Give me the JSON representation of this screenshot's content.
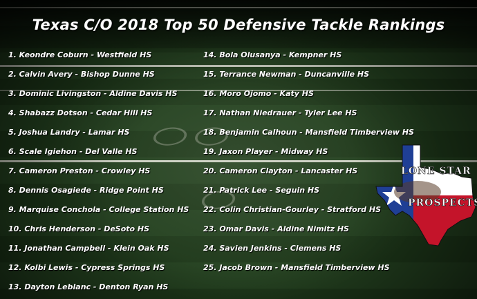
{
  "title": "Texas C/O 2018 Top 50 Defensive Tackle Rankings",
  "rankings_left": [
    "1. Keondre Coburn - Westfield HS",
    "2. Calvin Avery - Bishop Dunne HS",
    "3. Dominic Livingston - Aldine Davis HS",
    "4. Shabazz Dotson - Cedar Hill HS",
    "5. Joshua Landry - Lamar HS",
    "6. Scale Igiehon - Del Valle HS",
    "7. Cameron Preston - Crowley HS",
    "8. Dennis Osagiede - Ridge Point HS",
    "9. Marquise Conchola - College Station HS",
    "10. Chris Henderson - DeSoto HS",
    "11. Jonathan Campbell - Klein Oak HS",
    "12. Kolbi Lewis - Cypress Springs HS",
    "13. Dayton Leblanc - Denton Ryan HS"
  ],
  "rankings_right": [
    "14. Bola Olusanya - Kempner HS",
    "15. Terrance Newman - Duncanville HS",
    "16. Moro Ojomo - Katy HS",
    "17. Nathan Niedrauer - Tyler Lee HS",
    "18. Benjamin Calhoun - Mansfield Timberview HS",
    "19. Jaxon Player - Midway HS",
    "20. Cameron Clayton - Lancaster HS",
    "21. Patrick Lee - Seguin HS",
    "22. Colin Christian-Gourley - Stratford HS",
    "23. Omar Davis - Aldine Nimitz HS",
    "24. Savien Jenkins - Clemens HS",
    "25. Jacob Brown - Mansfield Timberview HS"
  ],
  "logo": {
    "line1": "LONE STAR",
    "line2": "PROSPECTS",
    "colors": {
      "blue": "#1f3f95",
      "red": "#c4142a",
      "white": "#ffffff"
    }
  }
}
